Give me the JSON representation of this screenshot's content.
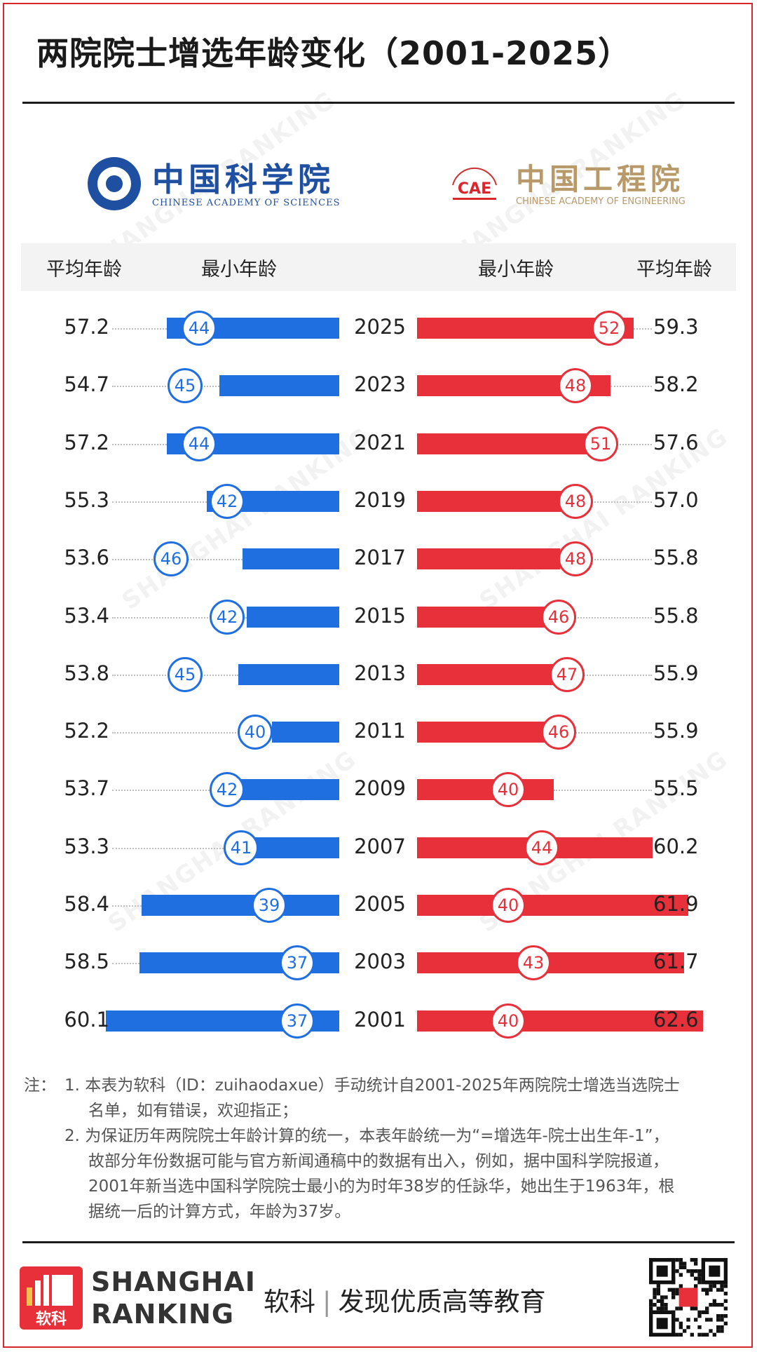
{
  "title": "两院院士增选年龄变化（2001-2025）",
  "logos": {
    "cas_name": "中国科学院",
    "cas_en": "CHINESE ACADEMY OF SCIENCES",
    "cae_name": "中国工程院",
    "cae_en": "CHINESE ACADEMY OF ENGINEERING",
    "cae_mark": "CAE"
  },
  "headers": {
    "left_avg": "平均年龄",
    "left_min": "最小年龄",
    "right_min": "最小年龄",
    "right_avg": "平均年龄"
  },
  "chart_data": {
    "type": "bar",
    "title": "两院院士增选年龄变化（2001-2025）",
    "categories": [
      "2025",
      "2023",
      "2021",
      "2019",
      "2017",
      "2015",
      "2013",
      "2011",
      "2009",
      "2007",
      "2005",
      "2003",
      "2001"
    ],
    "series": [
      {
        "name": "中国科学院 平均年龄",
        "values": [
          57.2,
          54.7,
          57.2,
          55.3,
          53.6,
          53.4,
          53.8,
          52.2,
          53.7,
          53.3,
          58.4,
          58.5,
          60.1
        ]
      },
      {
        "name": "中国科学院 最小年龄",
        "values": [
          44,
          45,
          44,
          42,
          46,
          42,
          45,
          40,
          42,
          41,
          39,
          37,
          37
        ]
      },
      {
        "name": "中国工程院 最小年龄",
        "values": [
          52,
          48,
          51,
          48,
          48,
          46,
          47,
          46,
          40,
          44,
          40,
          43,
          40
        ]
      },
      {
        "name": "中国工程院 平均年龄",
        "values": [
          59.3,
          58.2,
          57.6,
          57.0,
          55.8,
          55.8,
          55.9,
          55.9,
          55.5,
          60.2,
          61.9,
          61.7,
          62.6
        ]
      }
    ],
    "colors": {
      "cas": "#1f6fe0",
      "cae": "#e8303a"
    }
  },
  "notes": {
    "label": "注：",
    "line1": "1. 本表为软科（ID：zuihaodaxue）手动统计自2001-2025年两院院士增选当选院士",
    "line2": "名单，如有错误，欢迎指正；",
    "line3": "2. 为保证历年两院院士年龄计算的统一，本表年龄统一为“=增选年-院士出生年-1”，",
    "line4": "故部分年份数据可能与官方新闻通稿中的数据有出入，例如，据中国科学院报道，",
    "line5": "2001年新当选中国科学院院士最小的为时年38岁的任詠华，她出生于1963年，根",
    "line6": "据统一后的计算方式，年龄为37岁。"
  },
  "footer": {
    "brand_line1": "SHANGHAI",
    "brand_line2": "RANKING",
    "logo_text": "软科",
    "slogan_left": "软科",
    "slogan_sep": "|",
    "slogan_right": "发现优质高等教育"
  }
}
